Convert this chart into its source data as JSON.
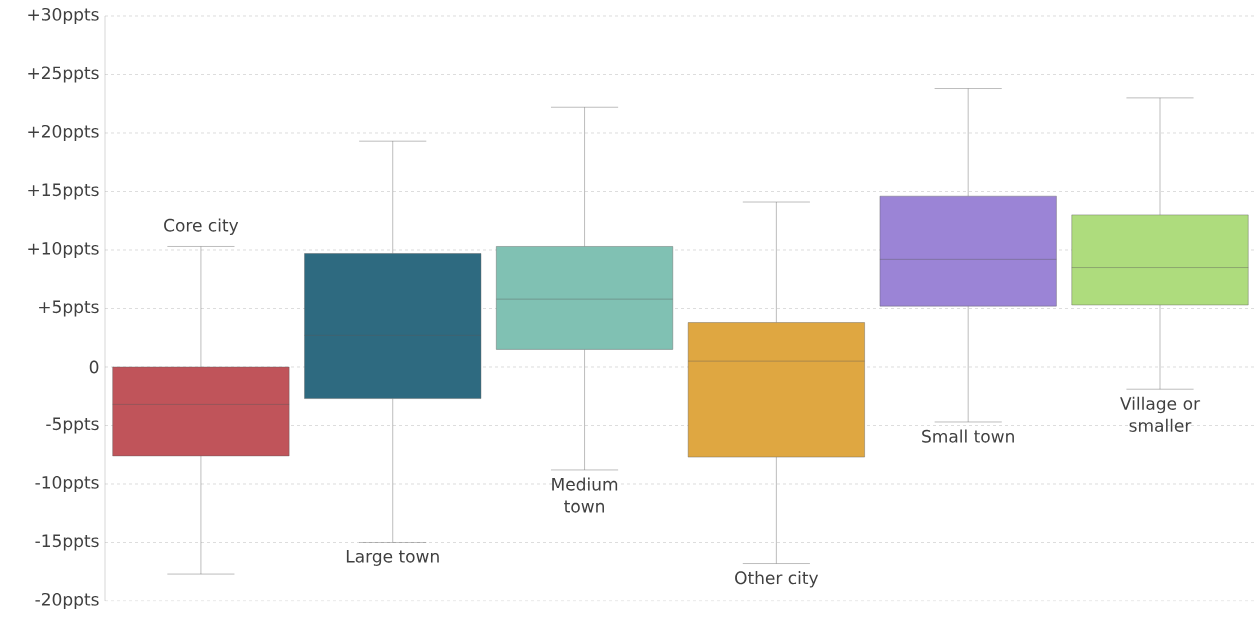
{
  "chart_data": {
    "type": "box",
    "categories": [
      "Core city",
      "Large town",
      "Medium town",
      "Other city",
      "Small town",
      "Village or smaller"
    ],
    "boxes": [
      {
        "low": -17.7,
        "q1": -7.6,
        "median": -3.2,
        "q3": 0,
        "high": 10.3
      },
      {
        "low": -15.0,
        "q1": -2.7,
        "median": 2.7,
        "q3": 9.7,
        "high": 19.3
      },
      {
        "low": -8.8,
        "q1": 1.5,
        "median": 5.8,
        "q3": 10.3,
        "high": 22.2
      },
      {
        "low": -16.8,
        "q1": -7.7,
        "median": 0.5,
        "q3": 3.8,
        "high": 14.1
      },
      {
        "low": -4.7,
        "q1": 5.2,
        "median": 9.2,
        "q3": 14.6,
        "high": 23.8
      },
      {
        "low": -1.9,
        "q1": 5.3,
        "median": 8.5,
        "q3": 13.0,
        "high": 23.0
      }
    ],
    "colors": [
      "#c0545a",
      "#2e6a80",
      "#80c1b3",
      "#dfa741",
      "#9b84d6",
      "#aedc7d"
    ],
    "ylim": [
      -20,
      30
    ],
    "yticks": [
      {
        "value": -20,
        "label": "-20ppts"
      },
      {
        "value": -15,
        "label": "-15ppts"
      },
      {
        "value": -10,
        "label": "-10ppts"
      },
      {
        "value": -5,
        "label": "-5ppts"
      },
      0,
      {
        "value": 5,
        "label": "+5ppts"
      },
      {
        "value": 10,
        "label": "+10ppts"
      },
      {
        "value": 15,
        "label": "+15ppts"
      },
      {
        "value": 20,
        "label": "+20ppts"
      },
      {
        "value": 25,
        "label": "+25ppts"
      },
      {
        "value": 30,
        "label": "+30ppts"
      }
    ],
    "grid": "y"
  }
}
